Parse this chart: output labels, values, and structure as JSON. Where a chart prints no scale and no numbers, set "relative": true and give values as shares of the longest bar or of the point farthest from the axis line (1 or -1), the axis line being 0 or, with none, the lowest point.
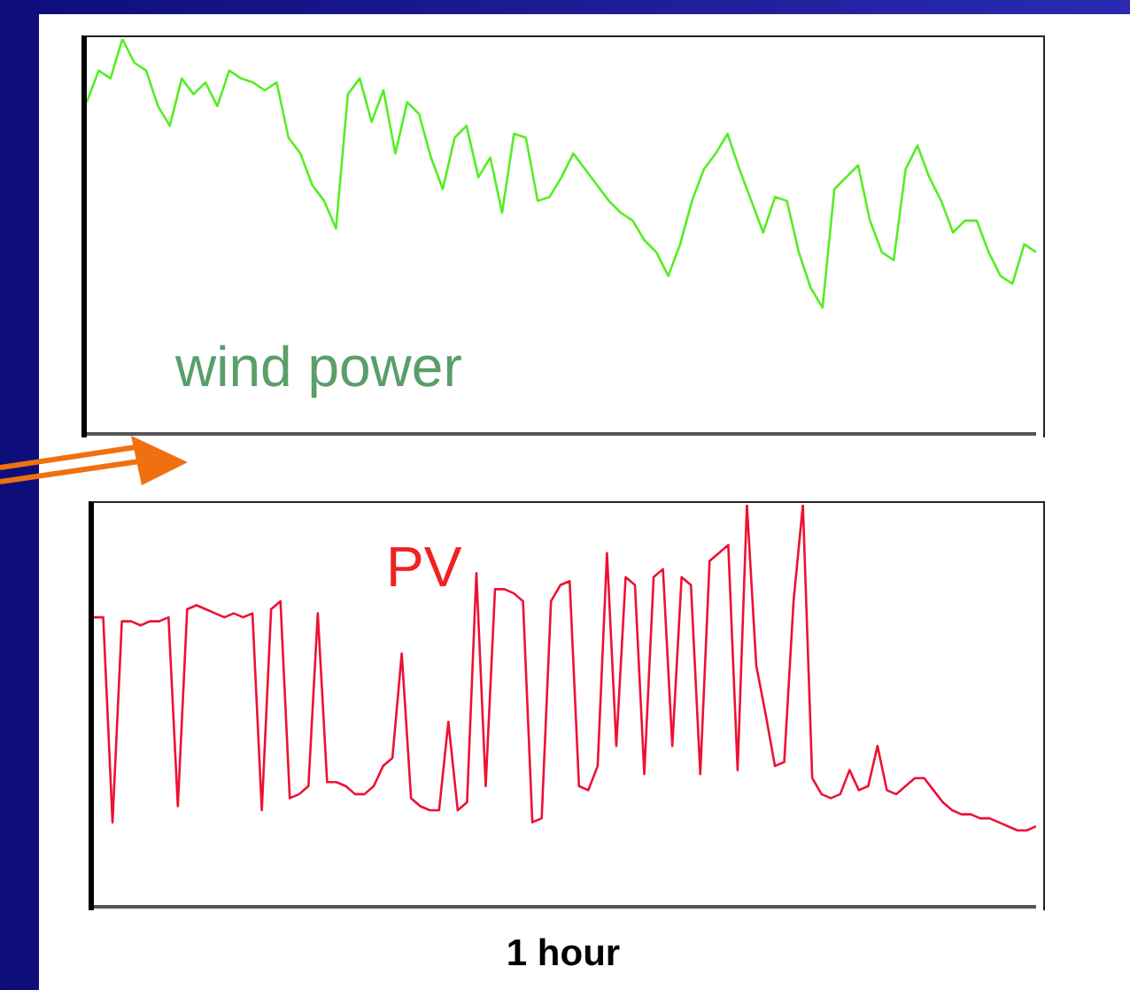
{
  "chart_data": [
    {
      "type": "line",
      "relative": true,
      "categories": [
        null,
        null,
        null,
        null,
        null,
        null,
        null,
        null,
        null,
        null,
        null,
        null,
        null,
        null,
        null,
        null,
        null,
        null,
        null,
        null,
        null,
        null,
        null,
        null,
        null,
        null,
        null,
        null,
        null,
        null,
        null,
        null,
        null,
        null,
        null,
        null,
        null,
        null,
        null,
        null,
        null,
        null,
        null,
        null,
        null,
        null,
        null,
        null,
        null,
        null,
        null,
        null,
        null,
        null,
        null,
        null,
        null,
        null,
        null,
        null,
        null,
        null,
        null,
        null,
        null,
        null,
        null,
        null,
        null,
        null,
        null,
        null,
        null,
        null,
        null,
        null,
        null,
        null,
        null,
        null,
        null
      ],
      "series": [
        {
          "name": "wind power",
          "color": "#55ee22",
          "values": [
            0.84,
            0.92,
            0.9,
            1,
            0.94,
            0.92,
            0.83,
            0.78,
            0.9,
            0.86,
            0.89,
            0.83,
            0.92,
            0.9,
            0.89,
            0.87,
            0.89,
            0.75,
            0.71,
            0.63,
            0.59,
            0.52,
            0.86,
            0.9,
            0.79,
            0.87,
            0.71,
            0.84,
            0.81,
            0.7,
            0.62,
            0.75,
            0.78,
            0.65,
            0.7,
            0.56,
            0.76,
            0.75,
            0.59,
            0.6,
            0.65,
            0.71,
            0.67,
            0.63,
            0.59,
            0.56,
            0.54,
            0.49,
            0.46,
            0.4,
            0.48,
            0.59,
            0.67,
            0.71,
            0.76,
            0.67,
            0.59,
            0.51,
            0.6,
            0.59,
            0.46,
            0.37,
            0.32,
            0.62,
            0.65,
            0.68,
            0.54,
            0.46,
            0.44,
            0.67,
            0.73,
            0.65,
            0.59,
            0.51,
            0.54,
            0.54,
            0.46,
            0.4,
            0.38,
            0.48,
            0.46
          ]
        }
      ]
    },
    {
      "type": "line",
      "relative": true,
      "xlabel": "1 hour",
      "categories": [
        null,
        null,
        null,
        null,
        null,
        null,
        null,
        null,
        null,
        null,
        null,
        null,
        null,
        null,
        null,
        null,
        null,
        null,
        null,
        null,
        null,
        null,
        null,
        null,
        null,
        null,
        null,
        null,
        null,
        null,
        null,
        null,
        null,
        null,
        null,
        null,
        null,
        null,
        null,
        null,
        null,
        null,
        null,
        null,
        null,
        null,
        null,
        null,
        null,
        null,
        null,
        null,
        null,
        null,
        null,
        null,
        null,
        null,
        null,
        null,
        null,
        null,
        null,
        null,
        null,
        null,
        null,
        null,
        null,
        null,
        null,
        null,
        null,
        null,
        null,
        null,
        null,
        null,
        null,
        null,
        null,
        null,
        null,
        null,
        null,
        null,
        null,
        null,
        null,
        null,
        null,
        null,
        null,
        null,
        null,
        null,
        null,
        null,
        null,
        null,
        null,
        null
      ],
      "series": [
        {
          "name": "PV",
          "color": "#ee1133",
          "values": [
            0.72,
            0.72,
            0.21,
            0.71,
            0.71,
            0.7,
            0.71,
            0.71,
            0.72,
            0.25,
            0.74,
            0.75,
            0.74,
            0.73,
            0.72,
            0.73,
            0.72,
            0.73,
            0.24,
            0.74,
            0.76,
            0.27,
            0.28,
            0.3,
            0.73,
            0.31,
            0.31,
            0.3,
            0.28,
            0.28,
            0.3,
            0.35,
            0.37,
            0.63,
            0.27,
            0.25,
            0.24,
            0.24,
            0.46,
            0.24,
            0.26,
            0.83,
            0.3,
            0.79,
            0.79,
            0.78,
            0.76,
            0.21,
            0.22,
            0.76,
            0.8,
            0.81,
            0.3,
            0.29,
            0.35,
            0.88,
            0.4,
            0.82,
            0.8,
            0.33,
            0.82,
            0.84,
            0.4,
            0.82,
            0.8,
            0.33,
            0.86,
            0.88,
            0.9,
            0.34,
            1,
            0.6,
            0.48,
            0.35,
            0.36,
            0.76,
            1,
            0.32,
            0.28,
            0.27,
            0.28,
            0.34,
            0.29,
            0.3,
            0.4,
            0.29,
            0.28,
            0.3,
            0.32,
            0.32,
            0.29,
            0.26,
            0.24,
            0.23,
            0.23,
            0.22,
            0.22,
            0.21,
            0.2,
            0.19,
            0.19,
            0.2
          ]
        }
      ]
    }
  ]
}
